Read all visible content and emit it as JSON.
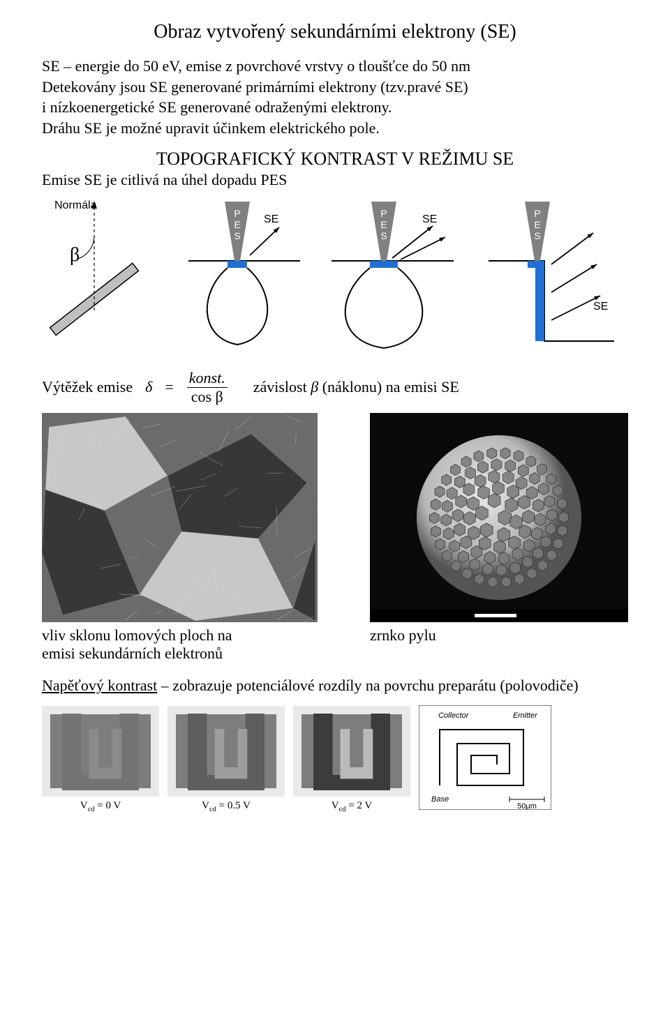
{
  "title": "Obraz vytvořený sekundárními elektrony (SE)",
  "intro": "SE – energie do 50 eV, emise z povrchové vrstvy o tloušťce do 50 nm\nDetekovány jsou SE generované primárními elektrony (tzv.pravé SE)\ni nízkoenergetické SE generované odraženými elektrony.\nDráhu SE je možné upravit účinkem elektrického pole.",
  "section_title_caps": "TOPOGRAFICKÝ KONTRAST V REŽIMU ",
  "section_title_end": "SE",
  "subline": "Emise SE je citlivá na úhel dopadu PES",
  "angle_diagram": {
    "label_normal": "Normála",
    "beta": "β",
    "colors": {
      "bar_fill": "#bfbfbf",
      "bar_stroke": "#000000",
      "normal_line": "#000000"
    }
  },
  "pes_diagrams": {
    "pes_label": "PES",
    "se_label": "SE",
    "colors": {
      "cone_fill": "#808080",
      "emission_fill": "#1f6fd4",
      "stroke": "#000000"
    }
  },
  "formula": {
    "lhs_label": "Výtěžek emise",
    "delta": "δ",
    "eq": "=",
    "num": "konst.",
    "den_text": "cos β",
    "rhs_text_1": "závislost ",
    "rhs_beta": "β",
    "rhs_text_2": " (náklonu) na emisi SE"
  },
  "sem_images": {
    "left": {
      "bg": "#6b6b6b",
      "highlight": "#d9d9d9",
      "shadow": "#2f2f2f"
    },
    "right": {
      "bg": "#0a0a0a",
      "sphere": "#b8b8b8",
      "cell": "#7a7a7a",
      "border": "#3a3a3a"
    }
  },
  "captions": {
    "left_line1": "vliv sklonu lomových ploch na",
    "left_line2": "emisi sekundárních elektronů",
    "right": "zrnko pylu"
  },
  "bottom_text_1_u": "Napěťový kontrast",
  "bottom_text_1_rest": " – zobrazuje potenciálové rozdíly na povrchu preparátu (polovodiče)",
  "bottom_row": {
    "thumbs": {
      "dark": "#2b2b2b",
      "light": "#c8c8c8",
      "mid": "#7d7d7d",
      "bg": "#e9e9e9"
    },
    "labels": [
      {
        "base": "V",
        "sub": "cd",
        "rest": " = 0 V"
      },
      {
        "base": "V",
        "sub": "cd",
        "rest": " = 0.5 V"
      },
      {
        "base": "V",
        "sub": "cd",
        "rest": " = 2 V"
      }
    ],
    "schematic": {
      "stroke": "#000000",
      "labels": {
        "collector": "Collector",
        "emitter": "Emitter",
        "base": "Base",
        "scale": "50μm"
      }
    }
  }
}
